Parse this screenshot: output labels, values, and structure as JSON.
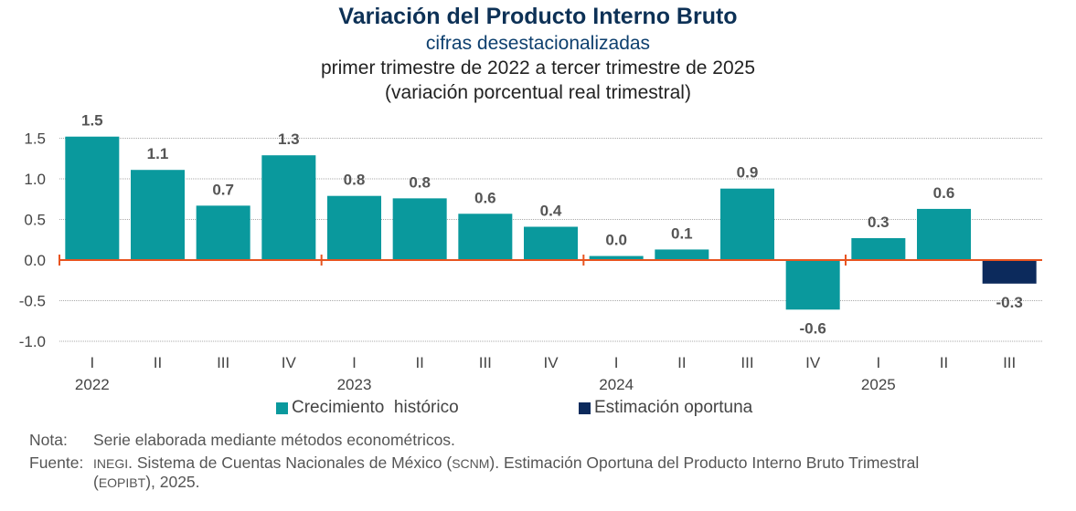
{
  "chart_data": {
    "type": "bar",
    "title": "Variación del Producto Interno Bruto",
    "subtitles": [
      "cifras desestacionalizadas",
      "primer trimestre de 2022 a tercer trimestre de 2025",
      "(variación porcentual real trimestral)"
    ],
    "categories": [
      "I",
      "II",
      "III",
      "IV",
      "I",
      "II",
      "III",
      "IV",
      "I",
      "II",
      "III",
      "IV",
      "I",
      "II",
      "III"
    ],
    "years": [
      {
        "label": "2022",
        "index": 0
      },
      {
        "label": "2023",
        "index": 4
      },
      {
        "label": "2024",
        "index": 8
      },
      {
        "label": "2025",
        "index": 12
      }
    ],
    "values": [
      1.52,
      1.11,
      0.67,
      1.29,
      0.79,
      0.76,
      0.57,
      0.41,
      0.05,
      0.13,
      0.88,
      -0.61,
      0.27,
      0.63,
      -0.29
    ],
    "labels": [
      "1.5",
      "1.1",
      "0.7",
      "1.3",
      "0.8",
      "0.8",
      "0.6",
      "0.4",
      "0.0",
      "0.1",
      "0.9",
      "-0.6",
      "0.3",
      "0.6",
      "-0.3"
    ],
    "series_of_point": [
      "hist",
      "hist",
      "hist",
      "hist",
      "hist",
      "hist",
      "hist",
      "hist",
      "hist",
      "hist",
      "hist",
      "hist",
      "hist",
      "hist",
      "est"
    ],
    "ylim": [
      -1.0,
      1.5
    ],
    "yticks": [
      "1.5",
      "1.0",
      "0.5",
      "0.0",
      "-0.5",
      "-1.0"
    ],
    "ytick_values": [
      1.5,
      1.0,
      0.5,
      0.0,
      -0.5,
      -1.0
    ],
    "grid": true,
    "legend": [
      {
        "key": "hist",
        "label": "Crecimiento  histórico",
        "color": "#0a999d"
      },
      {
        "key": "est",
        "label": "Estimación oportuna",
        "color": "#0c2a5c"
      }
    ],
    "legend_position": "bottom",
    "axis_color": "#e8541f"
  },
  "notes": {
    "nota_label": "Nota:",
    "nota_text": "Serie elaborada mediante métodos econométricos.",
    "fuente_label": "Fuente:",
    "fuente_sc1": "INEGI",
    "fuente_t1": ". Sistema de Cuentas Nacionales de México (",
    "fuente_sc2": "SCNM",
    "fuente_t2": "). Estimación Oportuna del Producto Interno Bruto Trimestral",
    "fuente_t3": "(",
    "fuente_sc3": "EOPIBT",
    "fuente_t4": "), 2025."
  }
}
